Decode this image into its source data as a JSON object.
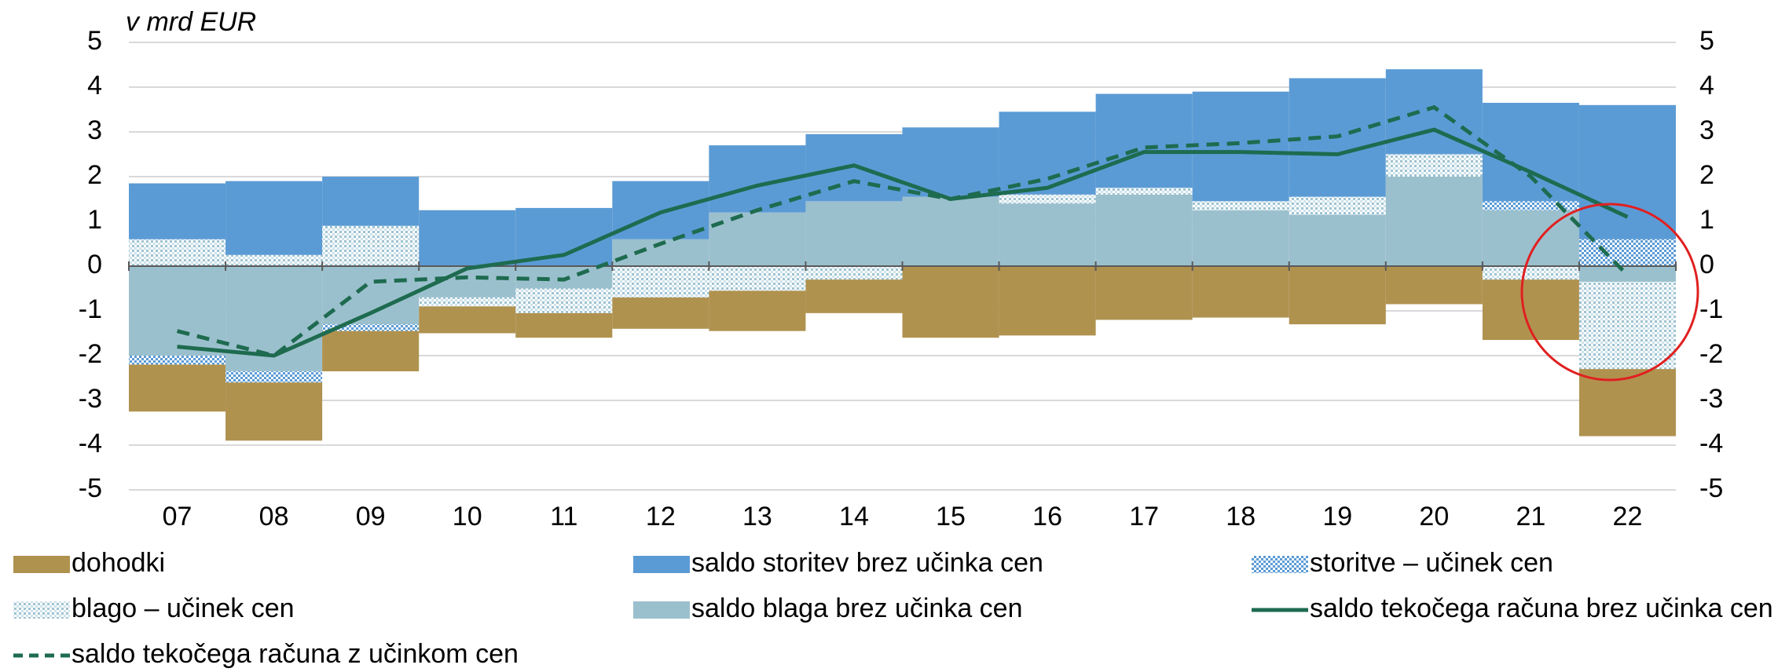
{
  "chart_data": {
    "type": "bar",
    "stacked": true,
    "title": "v mrd EUR",
    "categories": [
      "07",
      "08",
      "09",
      "10",
      "11",
      "12",
      "13",
      "14",
      "15",
      "16",
      "17",
      "18",
      "19",
      "20",
      "21",
      "22"
    ],
    "series": [
      {
        "name": "dohodki",
        "type": "bar",
        "color": "#b0924f",
        "values": [
          -1.05,
          -1.3,
          -0.9,
          -0.6,
          -0.55,
          -0.7,
          -0.9,
          -0.75,
          -1.6,
          -1.55,
          -1.2,
          -1.15,
          -1.3,
          -0.85,
          -1.35,
          -1.5
        ]
      },
      {
        "name": "saldo storitev brez učinka cen",
        "type": "bar",
        "color": "#5b9bd5",
        "values": [
          1.25,
          1.65,
          1.1,
          1.25,
          1.3,
          1.3,
          1.5,
          1.5,
          1.55,
          1.85,
          2.1,
          2.45,
          2.65,
          1.9,
          2.2,
          3.0
        ]
      },
      {
        "name": "storitve – učinek cen",
        "type": "bar",
        "color": "#5b9bd5",
        "hatch": true,
        "values": [
          -0.2,
          -0.25,
          -0.15,
          0,
          0,
          0,
          0,
          0,
          0,
          0,
          0,
          0,
          0,
          0,
          0.2,
          0.6
        ]
      },
      {
        "name": "blago – učinek cen",
        "type": "bar",
        "color": "#9dc3d3",
        "hatch": true,
        "values": [
          0.6,
          0.25,
          0.9,
          -0.2,
          -0.55,
          -0.7,
          -0.55,
          -0.3,
          0,
          0.2,
          0.15,
          0.2,
          0.4,
          0.5,
          -0.3,
          -1.95
        ]
      },
      {
        "name": "saldo blaga brez učinka cen",
        "type": "bar",
        "color": "#9bc0cd",
        "values": [
          -2.0,
          -2.35,
          -1.3,
          -0.7,
          -0.5,
          0.6,
          1.2,
          1.45,
          1.55,
          1.4,
          1.6,
          1.25,
          1.15,
          2.0,
          1.25,
          -0.35
        ]
      },
      {
        "name": "saldo tekočega računa brez učinka cen",
        "type": "line",
        "color": "#1e6b50",
        "dashed": false,
        "values": [
          -1.8,
          -2.0,
          -1.05,
          -0.05,
          0.25,
          1.2,
          1.8,
          2.25,
          1.5,
          1.75,
          2.55,
          2.55,
          2.5,
          3.05,
          2.1,
          1.1
        ]
      },
      {
        "name": "saldo tekočega računa z učinkom cen",
        "type": "line",
        "color": "#1e6b50",
        "dashed": true,
        "values": [
          -1.45,
          -2.0,
          -0.35,
          -0.25,
          -0.3,
          0.5,
          1.25,
          1.9,
          1.5,
          1.95,
          2.65,
          2.75,
          2.9,
          3.55,
          2.0,
          -0.2
        ]
      }
    ],
    "ylim": [
      -5,
      5
    ],
    "yticks": [
      -5,
      -4,
      -3,
      -2,
      -1,
      0,
      1,
      2,
      3,
      4,
      5
    ],
    "y2lim": [
      -5,
      5
    ],
    "y2ticks": [
      -5,
      -4,
      -3,
      -2,
      -1,
      0,
      1,
      2,
      3,
      4,
      5
    ],
    "grid": true,
    "legend": "bottom"
  }
}
